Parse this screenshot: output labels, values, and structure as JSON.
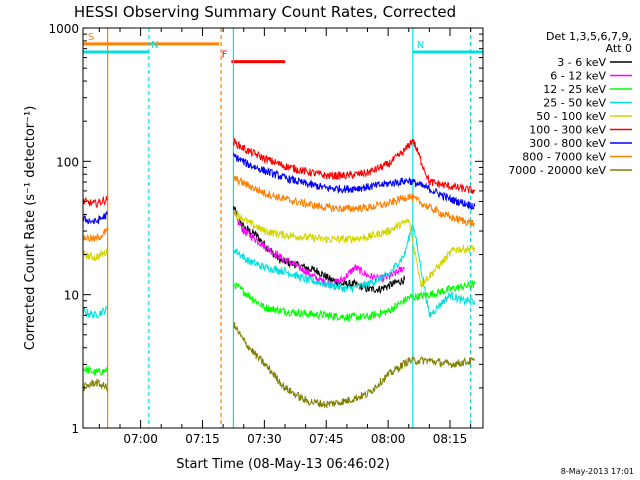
{
  "chart_data": {
    "type": "line",
    "title": "HESSI Observing Summary Count Rates, Corrected",
    "xlabel": "Start Time (08-May-13 06:46:02)",
    "ylabel": "Corrected Count Rate (s⁻¹ detector⁻¹)",
    "xlim": [
      "06:46:02",
      "08:23:00"
    ],
    "ylim": [
      1,
      1000
    ],
    "yscale": "log",
    "x_ticks": [
      "07:00",
      "07:15",
      "07:30",
      "07:45",
      "08:00",
      "08:15"
    ],
    "y_ticks": [
      "1",
      "10",
      "100",
      "1000"
    ],
    "legend_title": [
      "Det 1,3,5,6,7,9,",
      "Att 0"
    ],
    "legend_position": "right",
    "timestamp": "8-May-2013 17:01",
    "flags": [
      {
        "label": "S",
        "color": "#ff8000",
        "start": "06:46:02",
        "end": "07:19:00",
        "level": 760
      },
      {
        "label": "N",
        "color": "#00e0e0",
        "start": "06:46:02",
        "end": "07:02:00",
        "level": 660
      },
      {
        "label": "N",
        "color": "#00e0e0",
        "start": "08:06:00",
        "end": "08:23:00",
        "level": 660
      },
      {
        "label": "F",
        "color": "#ff0000",
        "start": "07:22:00",
        "end": "07:35:00",
        "level": 560
      }
    ],
    "vertical_lines": [
      {
        "time": "06:52:00",
        "color": "#ff8000",
        "style": "solid"
      },
      {
        "time": "07:02:00",
        "color": "#00e0e0",
        "style": "dashed"
      },
      {
        "time": "07:19:30",
        "color": "#ff8000",
        "style": "dashed"
      },
      {
        "time": "07:22:30",
        "color": "#00e0e0",
        "style": "solid"
      },
      {
        "time": "08:06:00",
        "color": "#00e0e0",
        "style": "solid"
      },
      {
        "time": "08:20:00",
        "color": "#00e0e0",
        "style": "dashed"
      }
    ],
    "series": [
      {
        "name": "3 - 6 keV",
        "color": "#000000",
        "segments": [
          {
            "x": [
              "07:22:30",
              "07:25:00",
              "07:28:00",
              "07:31:00",
              "07:34:00",
              "07:37:00",
              "07:40:00",
              "07:43:00",
              "07:46:00",
              "07:49:00",
              "07:52:00",
              "07:55:00",
              "07:58:00",
              "08:01:00",
              "08:04:00"
            ],
            "y": [
              45,
              32,
              28,
              22,
              18,
              17,
              16,
              15,
              13,
              12,
              12,
              11,
              11,
              12,
              13
            ]
          }
        ]
      },
      {
        "name": "6 - 12 keV",
        "color": "#ff00ff",
        "segments": [
          {
            "x": [
              "07:22:30",
              "07:25:00",
              "07:28:00",
              "07:31:00",
              "07:34:00",
              "07:37:00",
              "07:40:00",
              "07:43:00",
              "07:46:00",
              "07:49:00",
              "07:52:00",
              "07:55:00",
              "07:58:00",
              "08:01:00",
              "08:04:00"
            ],
            "y": [
              40,
              30,
              26,
              22,
              19,
              17,
              15,
              13,
              12,
              13,
              16,
              14,
              13,
              14,
              16
            ]
          }
        ]
      },
      {
        "name": "12 - 25 keV",
        "color": "#00ff00",
        "segments": [
          {
            "x": [
              "06:46:02",
              "06:49:00",
              "06:52:00"
            ],
            "y": [
              2.8,
              2.6,
              2.7
            ]
          },
          {
            "x": [
              "07:22:30",
              "07:26:00",
              "07:30:00",
              "07:35:00",
              "07:40:00",
              "07:45:00",
              "07:50:00",
              "07:55:00",
              "08:00:00",
              "08:05:00",
              "08:10:00",
              "08:15:00",
              "08:21:00"
            ],
            "y": [
              12,
              10,
              8,
              7.5,
              7.2,
              7,
              6.8,
              6.8,
              7.5,
              9.5,
              10,
              11,
              12
            ]
          }
        ]
      },
      {
        "name": "25 - 50 keV",
        "color": "#00e0e0",
        "segments": [
          {
            "x": [
              "06:46:02",
              "06:49:00",
              "06:52:00"
            ],
            "y": [
              7.5,
              7.0,
              7.8
            ]
          },
          {
            "x": [
              "07:22:30",
              "07:26:00",
              "07:30:00",
              "07:35:00",
              "07:40:00",
              "07:45:00",
              "07:50:00",
              "07:55:00",
              "08:00:00",
              "08:04:00",
              "08:06:00",
              "08:10:00",
              "08:15:00",
              "08:18:00",
              "08:21:00"
            ],
            "y": [
              22,
              18,
              16,
              15,
              13,
              12,
              11,
              12,
              14,
              20,
              35,
              7,
              10,
              9,
              9
            ]
          }
        ]
      },
      {
        "name": "50 - 100 keV",
        "color": "#d4d400",
        "segments": [
          {
            "x": [
              "06:46:02",
              "06:49:00",
              "06:52:00"
            ],
            "y": [
              20,
              19,
              21
            ]
          },
          {
            "x": [
              "07:22:30",
              "07:26:00",
              "07:30:00",
              "07:35:00",
              "07:40:00",
              "07:45:00",
              "07:50:00",
              "07:55:00",
              "08:00:00",
              "08:05:00",
              "08:08:00",
              "08:12:00",
              "08:16:00",
              "08:21:00"
            ],
            "y": [
              42,
              35,
              30,
              28,
              27,
              26,
              26,
              27,
              30,
              36,
              12,
              16,
              22,
              22
            ]
          }
        ]
      },
      {
        "name": "100 - 300 keV",
        "color": "#ff0000",
        "segments": [
          {
            "x": [
              "06:46:02",
              "06:49:00",
              "06:52:00"
            ],
            "y": [
              50,
              48,
              52
            ]
          },
          {
            "x": [
              "07:22:30",
              "07:26:00",
              "07:30:00",
              "07:35:00",
              "07:40:00",
              "07:45:00",
              "07:50:00",
              "07:55:00",
              "08:00:00",
              "08:04:00",
              "08:06:00",
              "08:10:00",
              "08:15:00",
              "08:21:00"
            ],
            "y": [
              140,
              120,
              105,
              92,
              84,
              78,
              78,
              82,
              95,
              120,
              145,
              70,
              65,
              60
            ]
          }
        ]
      },
      {
        "name": "300 - 800 keV",
        "color": "#0000ff",
        "segments": [
          {
            "x": [
              "06:46:02",
              "06:49:00",
              "06:52:00"
            ],
            "y": [
              37,
              35,
              40
            ]
          },
          {
            "x": [
              "07:22:30",
              "07:26:00",
              "07:30:00",
              "07:35:00",
              "07:40:00",
              "07:45:00",
              "07:50:00",
              "07:55:00",
              "08:00:00",
              "08:05:00",
              "08:10:00",
              "08:15:00",
              "08:21:00"
            ],
            "y": [
              110,
              95,
              85,
              75,
              68,
              63,
              62,
              64,
              68,
              72,
              62,
              52,
              46
            ]
          }
        ]
      },
      {
        "name": "800 - 7000 keV",
        "color": "#ff8000",
        "segments": [
          {
            "x": [
              "06:46:02",
              "06:49:00",
              "06:52:00"
            ],
            "y": [
              27,
              26,
              30
            ]
          },
          {
            "x": [
              "07:22:30",
              "07:26:00",
              "07:30:00",
              "07:35:00",
              "07:40:00",
              "07:45:00",
              "07:50:00",
              "07:55:00",
              "08:00:00",
              "08:05:00",
              "08:10:00",
              "08:15:00",
              "08:21:00"
            ],
            "y": [
              75,
              66,
              58,
              52,
              48,
              45,
              44,
              45,
              48,
              55,
              45,
              38,
              34
            ]
          }
        ]
      },
      {
        "name": "7000 - 20000 keV",
        "color": "#808000",
        "segments": [
          {
            "x": [
              "06:46:02",
              "06:49:00",
              "06:52:00"
            ],
            "y": [
              2.0,
              2.2,
              2.0
            ]
          },
          {
            "x": [
              "07:22:30",
              "07:25:00",
              "07:28:00",
              "07:31:00",
              "07:35:00",
              "07:40:00",
              "07:45:00",
              "07:50:00",
              "07:55:00",
              "08:00:00",
              "08:05:00",
              "08:10:00",
              "08:15:00",
              "08:21:00"
            ],
            "y": [
              6,
              4.5,
              3.5,
              2.8,
              2.0,
              1.6,
              1.5,
              1.6,
              1.8,
              2.5,
              3.2,
              3.2,
              3.0,
              3.2
            ]
          }
        ]
      }
    ]
  }
}
